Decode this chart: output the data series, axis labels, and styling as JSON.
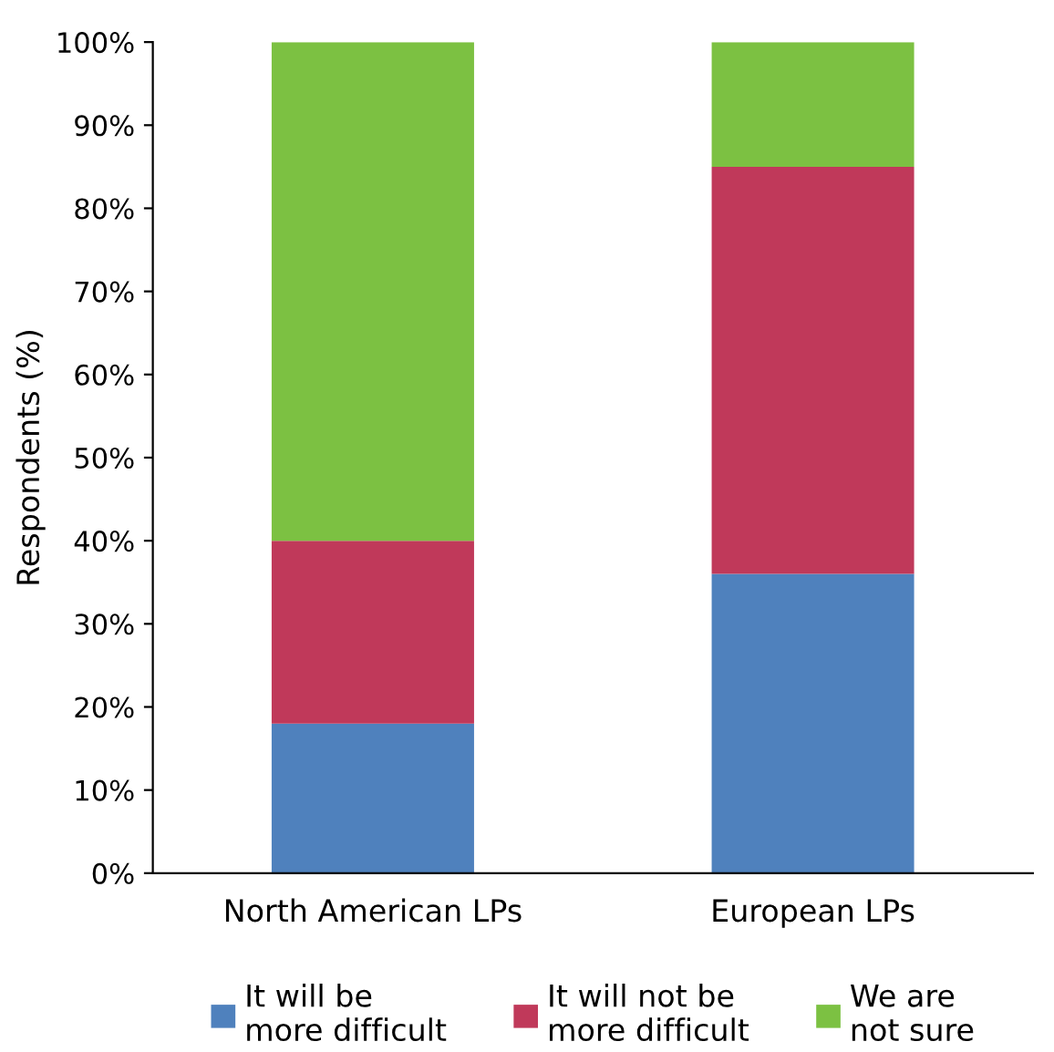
{
  "chart_data": {
    "type": "bar",
    "stacked": true,
    "ylabel": "Respondents (%)",
    "categories": [
      "North American LPs",
      "European LPs"
    ],
    "series": [
      {
        "name": "It will be\nmore difficult",
        "color": "#4f81bd",
        "values": [
          18,
          36
        ]
      },
      {
        "name": "It will not be\nmore difficult",
        "color": "#c0395a",
        "values": [
          22,
          49
        ]
      },
      {
        "name": "We are\nnot sure",
        "color": "#7cc142",
        "values": [
          60,
          15
        ]
      }
    ],
    "ylim": [
      0,
      100
    ],
    "yticks": [
      {
        "value": 0,
        "label": "0%"
      },
      {
        "value": 10,
        "label": "10%"
      },
      {
        "value": 20,
        "label": "20%"
      },
      {
        "value": 30,
        "label": "30%"
      },
      {
        "value": 40,
        "label": "40%"
      },
      {
        "value": 50,
        "label": "50%"
      },
      {
        "value": 60,
        "label": "60%"
      },
      {
        "value": 70,
        "label": "70%"
      },
      {
        "value": 80,
        "label": "80%"
      },
      {
        "value": 90,
        "label": "90%"
      },
      {
        "value": 100,
        "label": "100%"
      }
    ],
    "grid": false,
    "legend": "bottom"
  }
}
